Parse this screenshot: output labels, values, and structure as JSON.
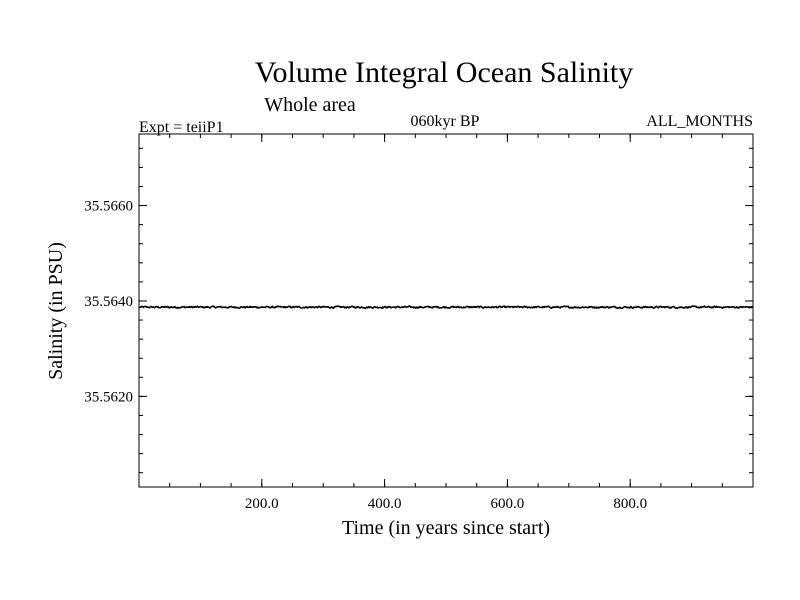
{
  "chart_data": {
    "type": "line",
    "title": "Volume Integral Ocean Salinity",
    "subtitle": "Whole area",
    "header_left": "Expt = teiiP1",
    "header_center": "060kyr BP",
    "header_right": "ALL_MONTHS",
    "xlabel": "Time (in years since start)",
    "ylabel": "Salinity (in PSU)",
    "xlim": [
      0,
      1000
    ],
    "ylim": [
      35.5601,
      35.5675
    ],
    "x_major_ticks": [
      200,
      400,
      600,
      800
    ],
    "x_tick_labels": [
      "200.0",
      "400.0",
      "600.0",
      "800.0"
    ],
    "x_minor_step": 50,
    "y_major_ticks": [
      35.562,
      35.564,
      35.566
    ],
    "y_tick_labels": [
      "35.5620",
      "35.5640",
      "35.5660"
    ],
    "y_minor_step": 0.0004,
    "grid": false,
    "series": [
      {
        "color": "#000000",
        "mean": 35.56387,
        "noise_amplitude": 3e-05,
        "x_start": 1,
        "x_end": 1000,
        "x_step": 1
      }
    ]
  }
}
